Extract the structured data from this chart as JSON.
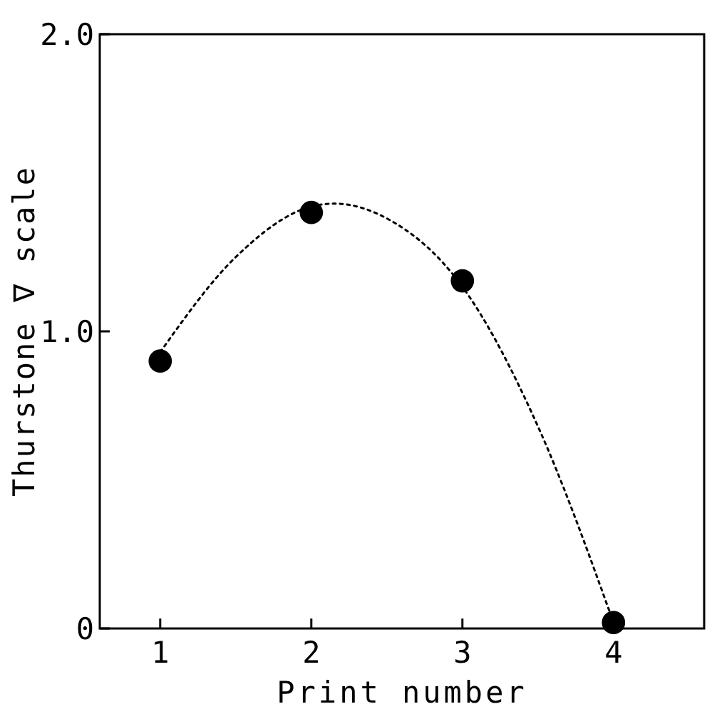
{
  "chart_data": {
    "type": "scatter",
    "xlabel": "Print number",
    "ylabel": "Thurstone ∇ scale",
    "x": [
      1,
      2,
      3,
      4
    ],
    "series": [
      {
        "color": "#000000",
        "marker": "circle",
        "values": [
          0.9,
          1.4,
          1.17,
          0.02
        ]
      },
      {
        "type": "line",
        "color": "#000000",
        "line_style": "dotted",
        "marker": "none",
        "x": [
          1,
          1.5,
          2,
          2.15,
          2.5,
          3,
          3.5,
          4
        ],
        "values": [
          0.93,
          1.25,
          1.42,
          1.43,
          1.38,
          1.15,
          0.68,
          0.02
        ]
      }
    ],
    "xlim": [
      0.6,
      4.6
    ],
    "xticks": [
      1,
      2,
      3,
      4
    ],
    "ylim": [
      0,
      2
    ],
    "yticks": [
      0,
      {
        "value": 1,
        "label": "1.0"
      },
      {
        "value": 2,
        "label": "2.0"
      }
    ],
    "grid": false
  }
}
